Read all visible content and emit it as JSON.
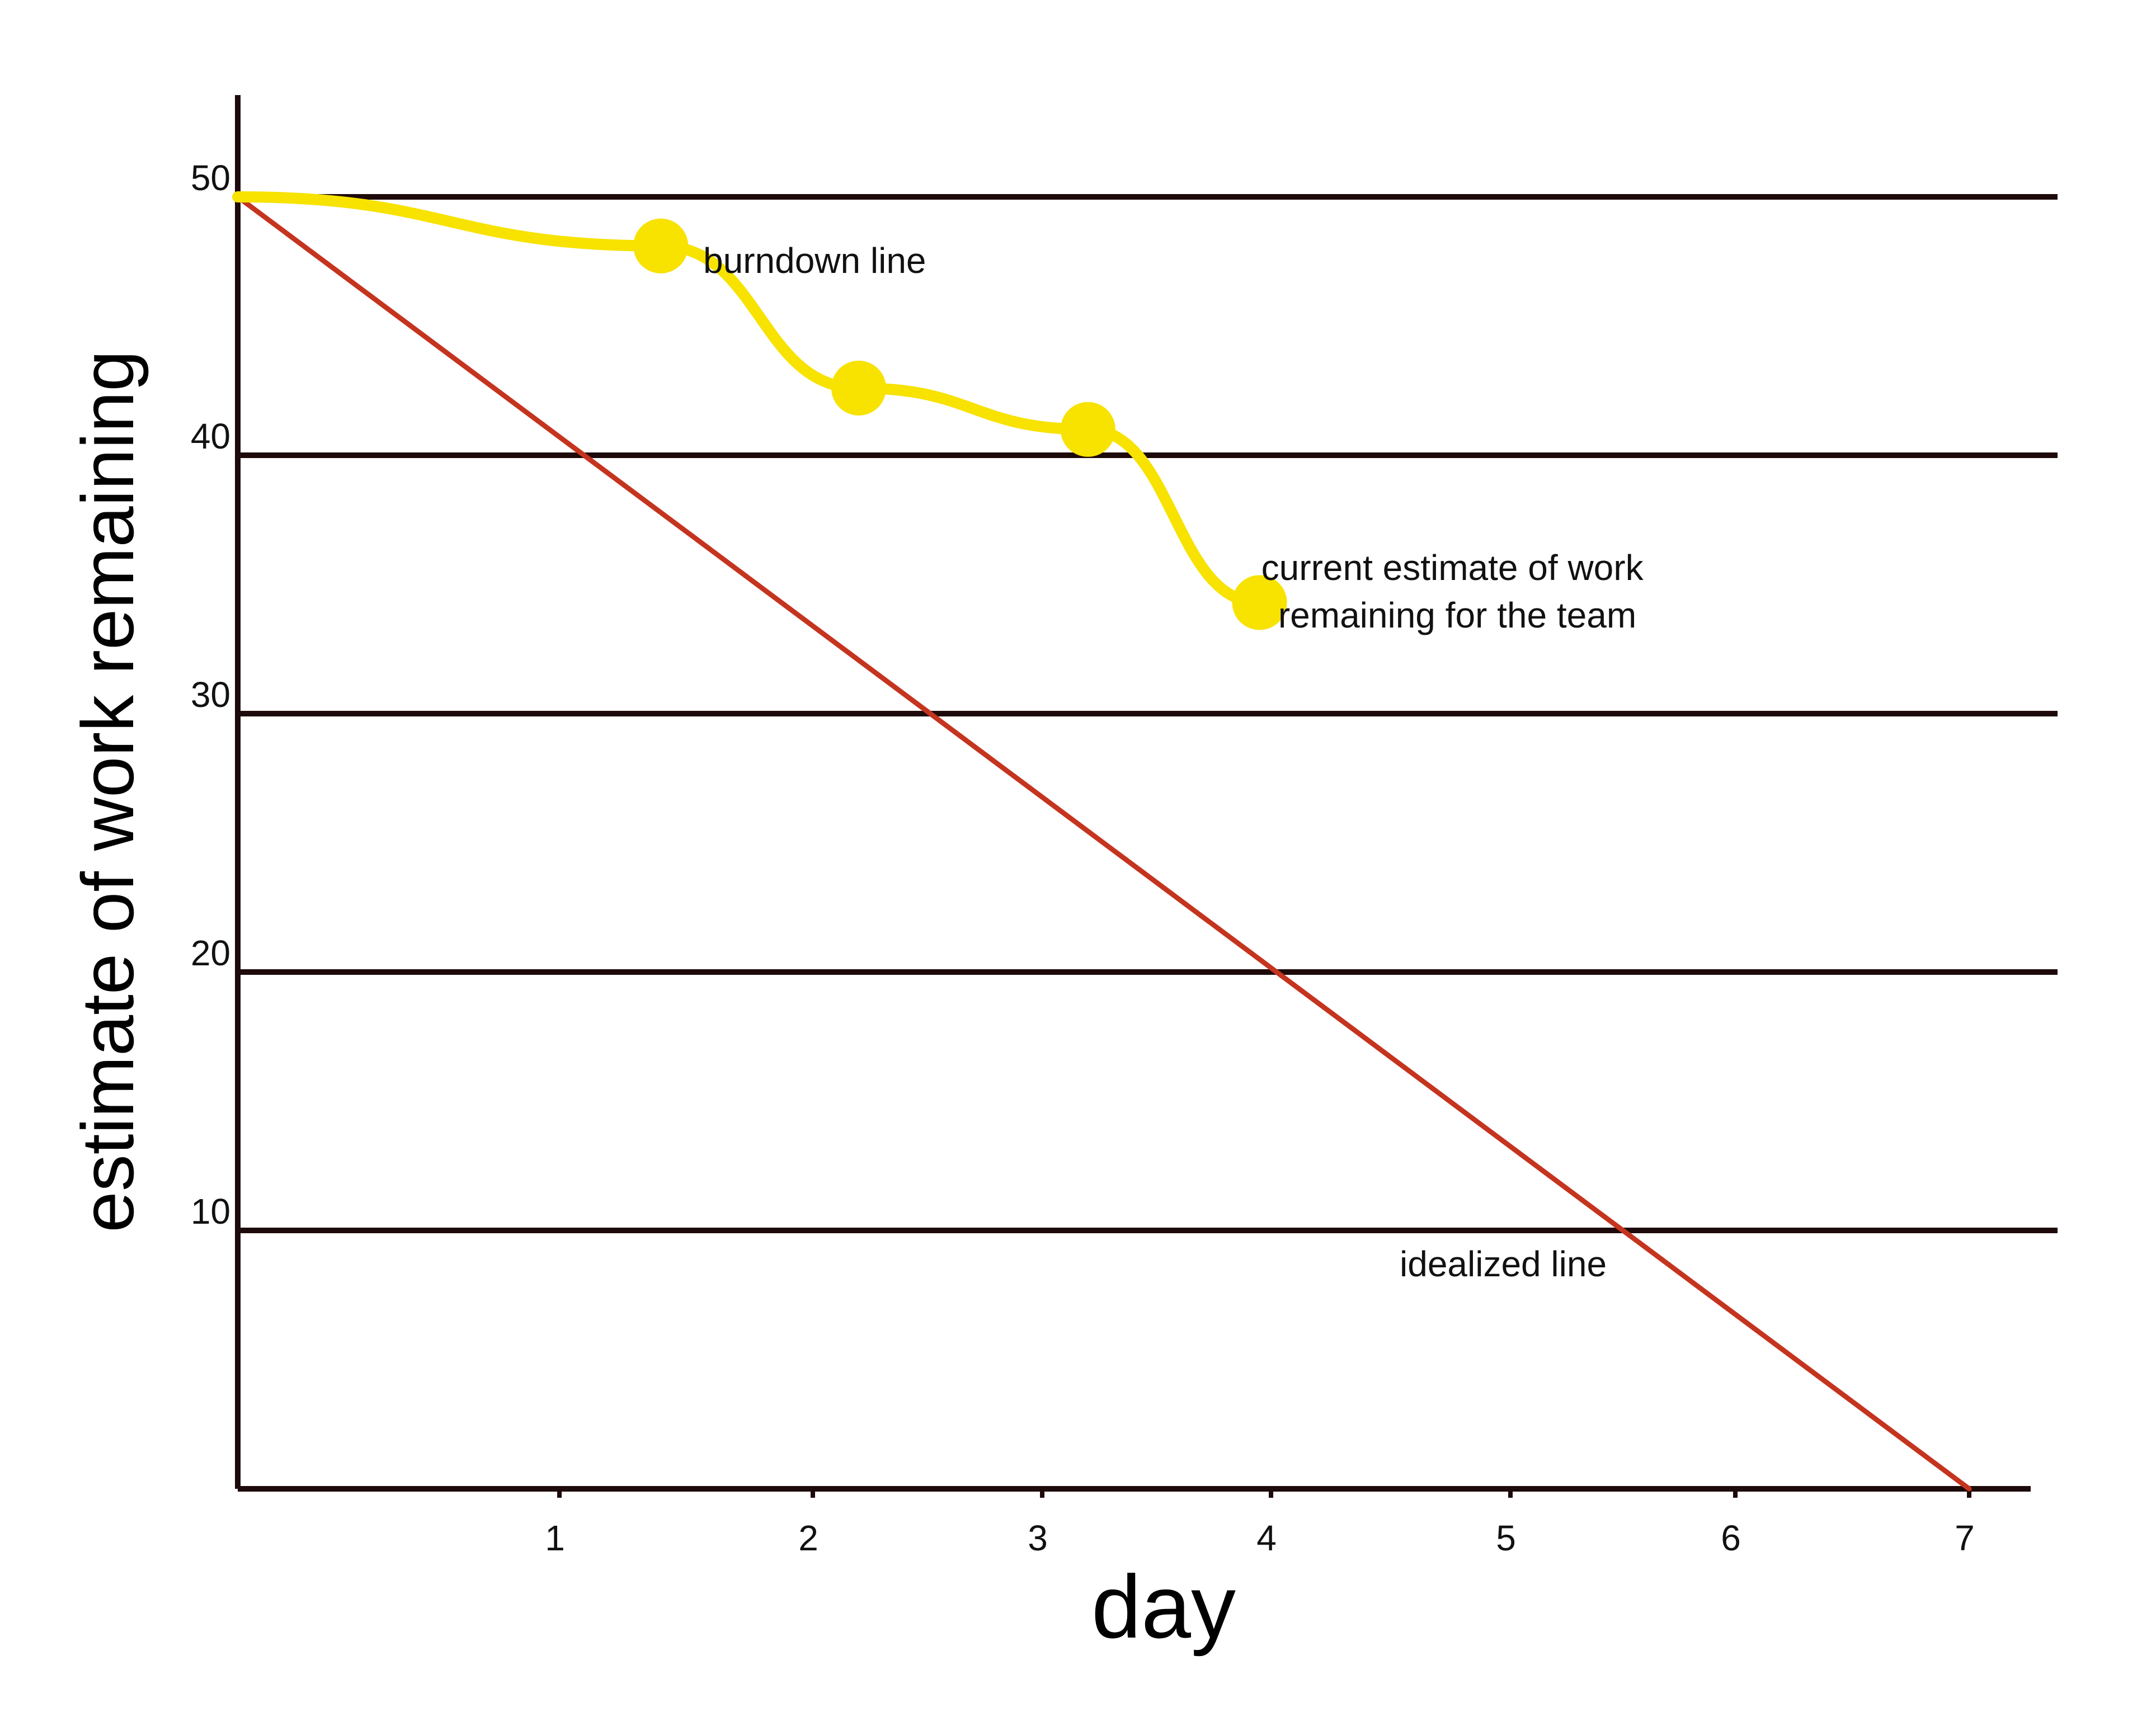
{
  "chart_data": {
    "type": "line",
    "xlabel": "day",
    "ylabel": "estimate of work remaining",
    "xlim": [
      0,
      7
    ],
    "ylim": [
      0,
      50
    ],
    "x_ticks": [
      "1",
      "2",
      "3",
      "4",
      "5",
      "6",
      "7"
    ],
    "y_ticks": [
      "10",
      "20",
      "30",
      "40",
      "50"
    ],
    "grid": "horizontal",
    "series": [
      {
        "name": "burndown line",
        "color": "#f7e200",
        "points": [
          {
            "x": 0,
            "y": 50
          },
          {
            "x": 1.4,
            "y": 48.1
          },
          {
            "x": 2.2,
            "y": 42.6
          },
          {
            "x": 3.2,
            "y": 41
          },
          {
            "x": 3.95,
            "y": 34.3
          }
        ]
      },
      {
        "name": "idealized line",
        "color": "#c4341f",
        "points": [
          {
            "x": 0,
            "y": 50
          },
          {
            "x": 7,
            "y": 0
          }
        ]
      }
    ],
    "annotations": [
      {
        "text": "burndown line"
      },
      {
        "lines": [
          "current estimate of work",
          "remaining for the team"
        ]
      },
      {
        "text": "idealized line"
      }
    ]
  }
}
